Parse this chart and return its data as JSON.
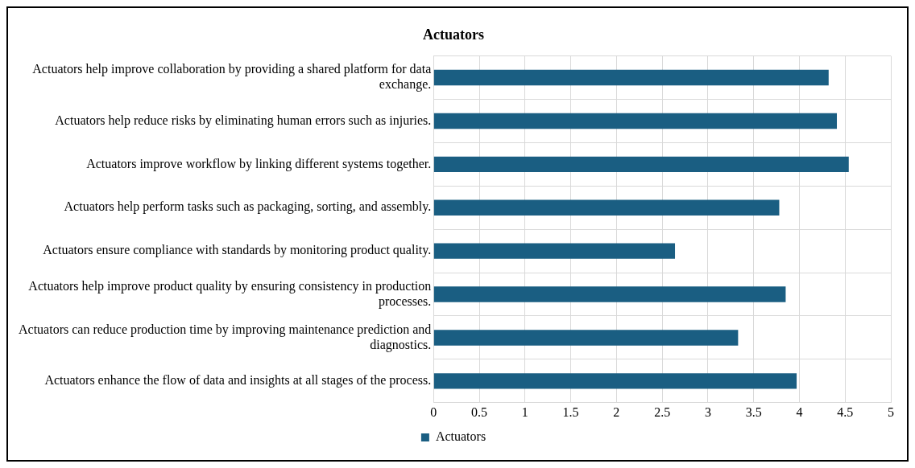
{
  "chart_data": {
    "type": "bar",
    "orientation": "horizontal",
    "title": "Actuators",
    "categories": [
      "Actuators help improve collaboration by providing a shared platform for data exchange.",
      "Actuators help reduce risks by eliminating human errors such as injuries.",
      "Actuators improve workflow by linking different systems together.",
      "Actuators help perform tasks such as packaging, sorting, and assembly.",
      "Actuators ensure compliance with standards by monitoring product quality.",
      "Actuators help improve product quality by ensuring consistency in production processes.",
      "Actuators can reduce production time by improving maintenance prediction and diagnostics.",
      "Actuators enhance the flow of data and insights at all stages of the process."
    ],
    "series": [
      {
        "name": "Actuators",
        "color": "#1a5e82",
        "values": [
          4.32,
          4.41,
          4.54,
          3.78,
          2.64,
          3.85,
          3.33,
          3.97
        ]
      }
    ],
    "xlim": [
      0,
      5
    ],
    "xticks": [
      0,
      0.5,
      1,
      1.5,
      2,
      2.5,
      3,
      3.5,
      4,
      4.5,
      5
    ],
    "grid": true,
    "legend": "bottom"
  }
}
